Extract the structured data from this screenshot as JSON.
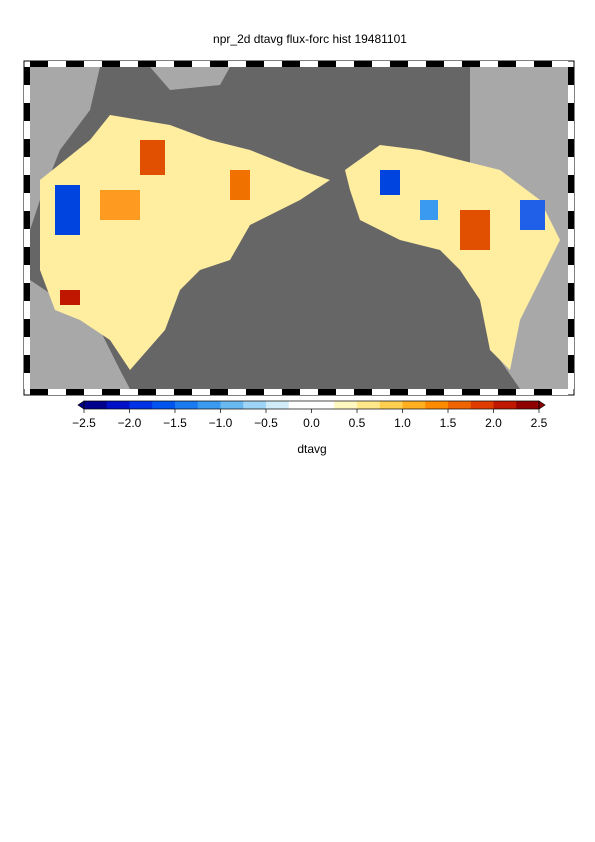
{
  "title": "npr_2d dtavg flux-forc hist 19481101",
  "colorbar": {
    "label": "dtavg",
    "lim": [
      -2.5,
      2.5
    ],
    "ticks": [
      {
        "value": -2.5,
        "label": "−2.5"
      },
      {
        "value": -2.0,
        "label": "−2.0"
      },
      {
        "value": -1.5,
        "label": "−1.5"
      },
      {
        "value": -1.0,
        "label": "−1.0"
      },
      {
        "value": -0.5,
        "label": "−0.5"
      },
      {
        "value": 0,
        "label": "0.0"
      },
      0.5,
      {
        "value": 1,
        "label": "1.0"
      },
      1.5,
      {
        "value": 2,
        "label": "2.0"
      },
      2.5
    ],
    "colors": [
      "#00008c",
      "#0010c8",
      "#0033e6",
      "#0055f0",
      "#1a7af0",
      "#3a9af0",
      "#6ab8f0",
      "#9ed4f5",
      "#d0ecf8",
      "#ffffff",
      "#ffffff",
      "#fff7c0",
      "#ffe88a",
      "#ffd050",
      "#ffb020",
      "#ff8c00",
      "#f06400",
      "#e03c00",
      "#c01800",
      "#900000"
    ]
  }
}
